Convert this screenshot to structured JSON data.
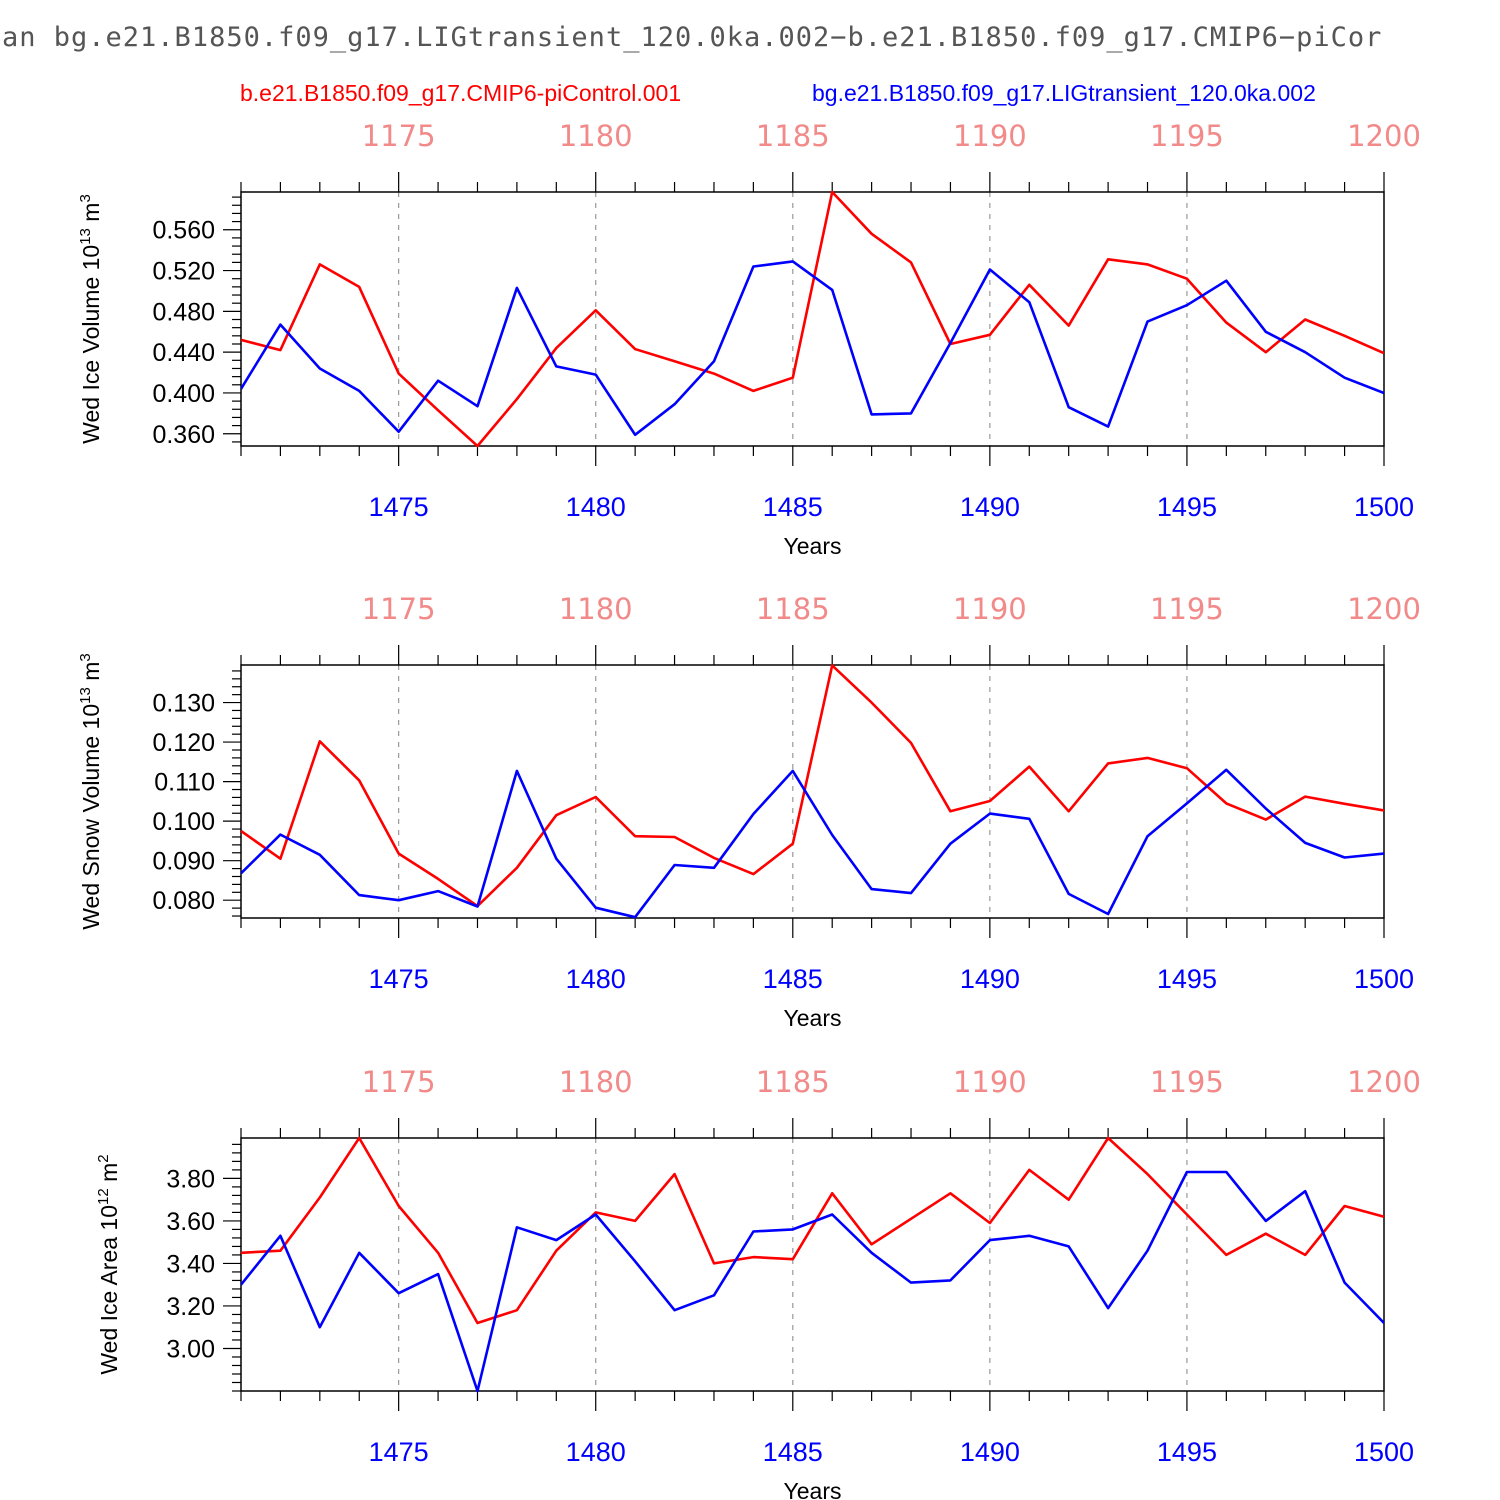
{
  "figure": {
    "title": "an bg.e21.B1850.f09_g17.LIGtransient_120.0ka.002−b.e21.B1850.f09_g17.CMIP6−piCor"
  },
  "legend": {
    "red_label": "b.e21.B1850.f09_g17.CMIP6-piControl.001",
    "blue_label": "bg.e21.B1850.f09_g17.LIGtransient_120.0ka.002"
  },
  "colors": {
    "control": "#ff0000",
    "transient": "#0000ff",
    "top_axis": "#f28a8a",
    "bottom_axis": "#0000ff",
    "grid": "#999999"
  },
  "chart_data": [
    {
      "type": "line",
      "ylabel": "Wed Ice Volume 10",
      "ylabel_sup": "13",
      "ylabel_unit": " m",
      "ylabel_unit_sup": "3",
      "xlabel": "Years",
      "xlim": [
        1471,
        1500
      ],
      "ylim": [
        0.348,
        0.597
      ],
      "yticks": [
        0.36,
        0.4,
        0.44,
        0.48,
        0.52,
        0.56
      ],
      "ytick_labels": [
        "0.360",
        "0.400",
        "0.440",
        "0.480",
        "0.520",
        "0.560"
      ],
      "xticks": [
        1475,
        1480,
        1485,
        1490,
        1495,
        1500
      ],
      "xtick_labels": [
        "1475",
        "1480",
        "1485",
        "1490",
        "1495",
        "1500"
      ],
      "top_xticks": [
        "1175",
        "1180",
        "1185",
        "1190",
        "1195",
        "1200"
      ],
      "x": [
        1471,
        1472,
        1473,
        1474,
        1475,
        1476,
        1477,
        1478,
        1479,
        1480,
        1481,
        1482,
        1483,
        1484,
        1485,
        1486,
        1487,
        1488,
        1489,
        1490,
        1491,
        1492,
        1493,
        1494,
        1495,
        1496,
        1497,
        1498,
        1499,
        1500
      ],
      "series": [
        {
          "name": "b.e21.B1850.f09_g17.CMIP6-piControl.001",
          "color": "#ff0000",
          "values": [
            0.452,
            0.442,
            0.526,
            0.504,
            0.419,
            0.383,
            0.348,
            0.394,
            0.444,
            0.481,
            0.443,
            0.431,
            0.419,
            0.402,
            0.415,
            0.597,
            0.556,
            0.528,
            0.448,
            0.457,
            0.506,
            0.466,
            0.531,
            0.526,
            0.512,
            0.469,
            0.44,
            0.472,
            0.456,
            0.439
          ]
        },
        {
          "name": "bg.e21.B1850.f09_g17.LIGtransient_120.0ka.002",
          "color": "#0000ff",
          "values": [
            0.404,
            0.467,
            0.424,
            0.402,
            0.362,
            0.412,
            0.387,
            0.503,
            0.426,
            0.418,
            0.359,
            0.389,
            0.431,
            0.524,
            0.529,
            0.501,
            0.379,
            0.38,
            0.449,
            0.521,
            0.489,
            0.386,
            0.367,
            0.47,
            0.486,
            0.51,
            0.46,
            0.44,
            0.415,
            0.4
          ]
        }
      ]
    },
    {
      "type": "line",
      "ylabel": "Wed Snow Volume 10",
      "ylabel_sup": "13",
      "ylabel_unit": " m",
      "ylabel_unit_sup": "3",
      "xlabel": "Years",
      "xlim": [
        1471,
        1500
      ],
      "ylim": [
        0.0755,
        0.1395
      ],
      "yticks": [
        0.08,
        0.09,
        0.1,
        0.11,
        0.12,
        0.13
      ],
      "ytick_labels": [
        "0.080",
        "0.090",
        "0.100",
        "0.110",
        "0.120",
        "0.130"
      ],
      "xticks": [
        1475,
        1480,
        1485,
        1490,
        1495,
        1500
      ],
      "xtick_labels": [
        "1475",
        "1480",
        "1485",
        "1490",
        "1495",
        "1500"
      ],
      "top_xticks": [
        "1175",
        "1180",
        "1185",
        "1190",
        "1195",
        "1200"
      ],
      "x": [
        1471,
        1472,
        1473,
        1474,
        1475,
        1476,
        1477,
        1478,
        1479,
        1480,
        1481,
        1482,
        1483,
        1484,
        1485,
        1486,
        1487,
        1488,
        1489,
        1490,
        1491,
        1492,
        1493,
        1494,
        1495,
        1496,
        1497,
        1498,
        1499,
        1500
      ],
      "series": [
        {
          "name": "b.e21.B1850.f09_g17.CMIP6-piControl.001",
          "color": "#ff0000",
          "values": [
            0.0975,
            0.0905,
            0.1202,
            0.1103,
            0.0918,
            0.0854,
            0.0785,
            0.0882,
            0.1015,
            0.1061,
            0.0962,
            0.096,
            0.0907,
            0.0866,
            0.0943,
            0.1394,
            0.13,
            0.1198,
            0.1025,
            0.1051,
            0.1138,
            0.1025,
            0.1146,
            0.116,
            0.1134,
            0.1045,
            0.1004,
            0.1062,
            0.1044,
            0.1027
          ]
        },
        {
          "name": "bg.e21.B1850.f09_g17.LIGtransient_120.0ka.002",
          "color": "#0000ff",
          "values": [
            0.0868,
            0.0966,
            0.0915,
            0.0813,
            0.08,
            0.0823,
            0.0784,
            0.1127,
            0.0905,
            0.0781,
            0.0757,
            0.0889,
            0.0882,
            0.1018,
            0.1127,
            0.0965,
            0.0828,
            0.0818,
            0.0943,
            0.1019,
            0.1006,
            0.0816,
            0.0765,
            0.0962,
            0.1045,
            0.113,
            0.1032,
            0.0945,
            0.0908,
            0.0918
          ]
        }
      ]
    },
    {
      "type": "line",
      "ylabel": "Wed Ice Area 10",
      "ylabel_sup": "12",
      "ylabel_unit": " m",
      "ylabel_unit_sup": "2",
      "xlabel": "Years",
      "xlim": [
        1471,
        1500
      ],
      "ylim": [
        2.8,
        3.99
      ],
      "yticks": [
        3.0,
        3.2,
        3.4,
        3.6,
        3.8
      ],
      "ytick_labels": [
        "3.00",
        "3.20",
        "3.40",
        "3.60",
        "3.80"
      ],
      "xticks": [
        1475,
        1480,
        1485,
        1490,
        1495,
        1500
      ],
      "xtick_labels": [
        "1475",
        "1480",
        "1485",
        "1490",
        "1495",
        "1500"
      ],
      "top_xticks": [
        "1175",
        "1180",
        "1185",
        "1190",
        "1195",
        "1200"
      ],
      "x": [
        1471,
        1472,
        1473,
        1474,
        1475,
        1476,
        1477,
        1478,
        1479,
        1480,
        1481,
        1482,
        1483,
        1484,
        1485,
        1486,
        1487,
        1488,
        1489,
        1490,
        1491,
        1492,
        1493,
        1494,
        1495,
        1496,
        1497,
        1498,
        1499,
        1500
      ],
      "series": [
        {
          "name": "b.e21.B1850.f09_g17.CMIP6-piControl.001",
          "color": "#ff0000",
          "values": [
            3.45,
            3.46,
            3.71,
            3.99,
            3.67,
            3.45,
            3.12,
            3.18,
            3.46,
            3.64,
            3.6,
            3.82,
            3.4,
            3.43,
            3.42,
            3.73,
            3.49,
            3.61,
            3.73,
            3.59,
            3.84,
            3.7,
            3.99,
            3.82,
            3.63,
            3.44,
            3.54,
            3.44,
            3.67,
            3.62
          ]
        },
        {
          "name": "bg.e21.B1850.f09_g17.LIGtransient_120.0ka.002",
          "color": "#0000ff",
          "values": [
            3.3,
            3.53,
            3.1,
            3.45,
            3.26,
            3.35,
            2.8,
            3.57,
            3.51,
            3.63,
            3.41,
            3.18,
            3.25,
            3.55,
            3.56,
            3.63,
            3.45,
            3.31,
            3.32,
            3.51,
            3.53,
            3.48,
            3.19,
            3.46,
            3.83,
            3.83,
            3.6,
            3.74,
            3.31,
            3.12
          ]
        }
      ]
    }
  ]
}
